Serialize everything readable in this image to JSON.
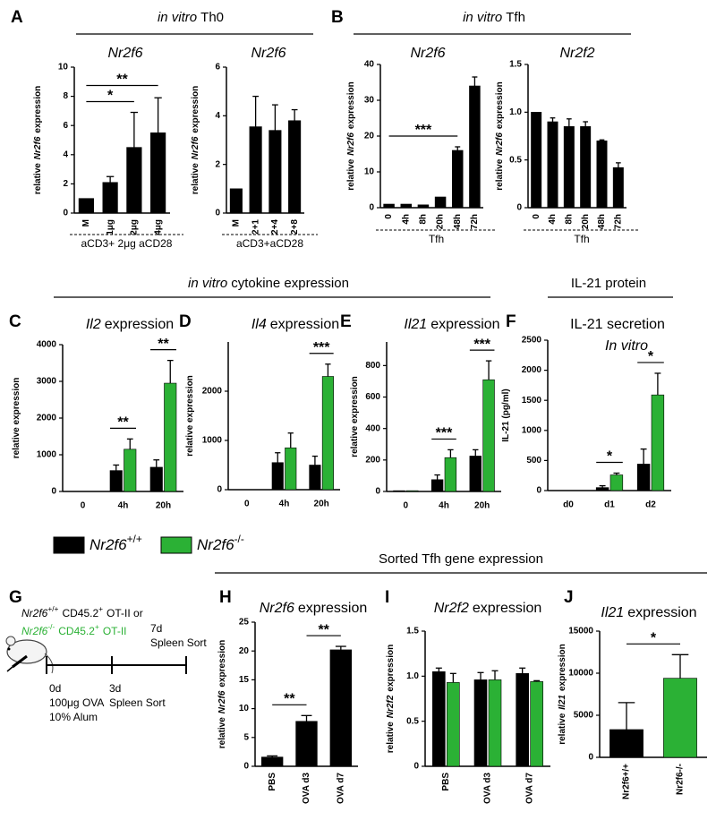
{
  "headers": [
    {
      "parts": [
        {
          "text": "in vitro",
          "italic": true
        },
        {
          "text": "Th0"
        }
      ]
    },
    {
      "parts": [
        {
          "text": "in vitro",
          "italic": true
        },
        {
          "text": "Tfh"
        }
      ]
    },
    {
      "parts": [
        {
          "text": "in vitro",
          "italic": true
        },
        {
          "text": "cytokine expression"
        }
      ]
    },
    {
      "parts": [
        {
          "text": "IL-21 protein"
        }
      ]
    },
    {
      "parts": [
        {
          "text": "Sorted Tfh gene expression"
        }
      ]
    }
  ],
  "panel_labels": [
    "A",
    "B",
    "C",
    "D",
    "E",
    "F",
    "G",
    "H",
    "I",
    "J"
  ],
  "legend": [
    {
      "color": "#000000",
      "label": [
        {
          "text": "Nr2f6",
          "italic": true
        },
        {
          "text": "+/+",
          "sup": true
        }
      ]
    },
    {
      "color": "#2bb135",
      "label": [
        {
          "text": "Nr2f6",
          "italic": true
        },
        {
          "text": "-/-",
          "sup": true
        }
      ]
    }
  ],
  "diagram": {
    "genotypes": [
      {
        "color": "#000000",
        "parts": [
          {
            "text": "Nr2f6",
            "italic": true
          },
          {
            "text": "+/+",
            "sup": true
          },
          {
            "text": "CD45.2"
          },
          {
            "text": "+",
            "sup": true
          },
          {
            "text": "OT-II or"
          }
        ]
      },
      {
        "color": "#2bb135",
        "parts": [
          {
            "text": "Nr2f6",
            "italic": true
          },
          {
            "text": "-/-",
            "sup": true
          },
          {
            "text": "CD45.2"
          },
          {
            "text": "+",
            "sup": true
          },
          {
            "text": "OT-II"
          }
        ]
      }
    ],
    "timepoints": [
      {
        "day": "0d",
        "lines": [
          "100μg OVA",
          "10% Alum"
        ]
      },
      {
        "day": "3d",
        "lines": [
          "Spleen Sort"
        ]
      },
      {
        "day": "7d",
        "lines": [
          "Spleen Sort"
        ]
      }
    ]
  },
  "chart_data": [
    {
      "type": "bar",
      "title": [
        {
          "text": "Nr2f6",
          "italic": true
        }
      ],
      "ylabel": [
        {
          "text": "relative"
        },
        {
          "text": "Nr2f6",
          "italic": true
        },
        {
          "text": "expression"
        }
      ],
      "categories": [
        "M",
        "1μg",
        "2μg",
        "4μg"
      ],
      "xlabel": "aCD3+ 2μg aCD28",
      "series": [
        {
          "color": "#000000",
          "values": [
            1,
            2.1,
            4.5,
            5.5
          ],
          "errors": [
            0,
            0.4,
            2.4,
            2.4
          ]
        }
      ],
      "ylim": [
        0,
        10
      ],
      "yticks": [
        0,
        2,
        4,
        6,
        8,
        10
      ],
      "significance": [
        {
          "label": "*",
          "from": "M",
          "to": "2μg"
        },
        {
          "label": "**",
          "from": "M",
          "to": "4μg"
        }
      ]
    },
    {
      "type": "bar",
      "title": [
        {
          "text": "Nr2f6",
          "italic": true
        }
      ],
      "ylabel": [
        {
          "text": "relative"
        },
        {
          "text": "Nr2f6",
          "italic": true
        },
        {
          "text": "expression"
        }
      ],
      "categories": [
        "M",
        "2+1",
        "2+4",
        "2+8"
      ],
      "xlabel": "aCD3+aCD28",
      "series": [
        {
          "color": "#000000",
          "values": [
            1,
            3.55,
            3.4,
            3.8
          ],
          "errors": [
            0,
            1.25,
            1.05,
            0.45
          ]
        }
      ],
      "ylim": [
        0,
        6
      ],
      "yticks": [
        0,
        2,
        4,
        6
      ],
      "significance": []
    },
    {
      "type": "bar",
      "title": [
        {
          "text": "Nr2f6",
          "italic": true
        }
      ],
      "ylabel": [
        {
          "text": "relative"
        },
        {
          "text": "Nr2f6",
          "italic": true
        },
        {
          "text": "expression"
        }
      ],
      "categories": [
        "0",
        "4h",
        "8h",
        "20h",
        "48h",
        "72h"
      ],
      "xlabel": "Tfh",
      "series": [
        {
          "color": "#000000",
          "values": [
            1,
            1,
            0.8,
            3,
            16,
            34
          ],
          "errors": [
            0,
            0,
            0,
            0,
            1,
            2.5
          ]
        }
      ],
      "ylim": [
        0,
        40
      ],
      "yticks": [
        0,
        10,
        20,
        30,
        40
      ],
      "significance": [
        {
          "label": "***",
          "from": "0",
          "to": "48h"
        }
      ]
    },
    {
      "type": "bar",
      "title": [
        {
          "text": "Nr2f2",
          "italic": true
        }
      ],
      "ylabel": [
        {
          "text": "relative"
        },
        {
          "text": "Nr2f6",
          "italic": true
        },
        {
          "text": "expression"
        }
      ],
      "categories": [
        "0",
        "4h",
        "8h",
        "20h",
        "48h",
        "72h"
      ],
      "xlabel": "Tfh",
      "series": [
        {
          "color": "#000000",
          "values": [
            1.0,
            0.9,
            0.85,
            0.85,
            0.7,
            0.42
          ],
          "errors": [
            0,
            0.04,
            0.08,
            0.05,
            0.01,
            0.05
          ]
        }
      ],
      "ylim": [
        0,
        1.5
      ],
      "yticks": [
        0,
        0.5,
        {
          "value": 1,
          "label": "1.0"
        },
        1.5
      ],
      "significance": []
    },
    {
      "type": "bar",
      "title": [
        {
          "text": "Il2",
          "italic": true
        },
        {
          "text": "expression"
        }
      ],
      "ylabel": [
        {
          "text": "relative expression"
        }
      ],
      "categories": [
        "0",
        "4h",
        "20h"
      ],
      "series": [
        {
          "color": "#000000",
          "values": [
            0,
            570,
            660
          ],
          "errors": [
            0,
            150,
            200
          ]
        },
        {
          "color": "#2bb135",
          "values": [
            0,
            1150,
            2950
          ],
          "errors": [
            0,
            280,
            620
          ]
        }
      ],
      "ylim": [
        0,
        4000
      ],
      "yticks": [
        0,
        1000,
        2000,
        3000,
        4000
      ],
      "significance": [
        {
          "label": "**",
          "from": "4h",
          "to": "4h"
        },
        {
          "label": "**",
          "from": "20h",
          "to": "20h"
        }
      ]
    },
    {
      "type": "bar",
      "title": [
        {
          "text": "Il4",
          "italic": true
        },
        {
          "text": "expression"
        }
      ],
      "ylabel": [
        {
          "text": "relative expression"
        }
      ],
      "categories": [
        "0",
        "4h",
        "20h"
      ],
      "series": [
        {
          "color": "#000000",
          "values": [
            0,
            550,
            500
          ],
          "errors": [
            0,
            200,
            180
          ]
        },
        {
          "color": "#2bb135",
          "values": [
            0,
            850,
            2300
          ],
          "errors": [
            0,
            300,
            250
          ]
        }
      ],
      "ylim": [
        0,
        3000
      ],
      "yticks": [
        0,
        1000,
        2000
      ],
      "significance": [
        {
          "label": "***",
          "from": "20h",
          "to": "20h"
        }
      ]
    },
    {
      "type": "bar",
      "title": [
        {
          "text": "Il21",
          "italic": true
        },
        {
          "text": "expression"
        }
      ],
      "ylabel": [
        {
          "text": "relative expression"
        }
      ],
      "categories": [
        "0",
        "4h",
        "20h"
      ],
      "series": [
        {
          "color": "#000000",
          "values": [
            5,
            75,
            225
          ],
          "errors": [
            0,
            30,
            40
          ]
        },
        {
          "color": "#2bb135",
          "values": [
            5,
            215,
            710
          ],
          "errors": [
            0,
            50,
            120
          ]
        }
      ],
      "ylim": [
        0,
        950
      ],
      "yticks": [
        0,
        200,
        400,
        600,
        800
      ],
      "significance": [
        {
          "label": "***",
          "from": "4h",
          "to": "4h"
        },
        {
          "label": "***",
          "from": "20h",
          "to": "20h"
        }
      ]
    },
    {
      "type": "bar",
      "title": [
        {
          "text": "IL-21 secretion"
        }
      ],
      "subtitle": [
        {
          "text": "In vitro",
          "italic": true
        }
      ],
      "ylabel": [
        {
          "text": "IL-21 (pg/ml)"
        }
      ],
      "categories": [
        "d0",
        "d1",
        "d2"
      ],
      "series": [
        {
          "color": "#000000",
          "values": [
            0,
            50,
            440
          ],
          "errors": [
            0,
            30,
            250
          ]
        },
        {
          "color": "#2bb135",
          "values": [
            0,
            260,
            1590
          ],
          "errors": [
            0,
            30,
            360
          ]
        }
      ],
      "ylim": [
        0,
        2500
      ],
      "yticks": [
        0,
        500,
        1000,
        1500,
        2000,
        2500
      ],
      "significance": [
        {
          "label": "*",
          "from": "d1",
          "to": "d1"
        },
        {
          "label": "*",
          "from": "d2",
          "to": "d2"
        }
      ]
    },
    {
      "type": "bar",
      "title": [
        {
          "text": "Nr2f6",
          "italic": true
        },
        {
          "text": "expression"
        }
      ],
      "ylabel": [
        {
          "text": "relative"
        },
        {
          "text": "Nr2f6",
          "italic": true
        },
        {
          "text": "expression"
        }
      ],
      "categories": [
        "PBS",
        "OVA d3",
        "OVA d7"
      ],
      "series": [
        {
          "color": "#000000",
          "values": [
            1.6,
            7.8,
            20.2
          ],
          "errors": [
            0.2,
            1.0,
            0.6
          ]
        }
      ],
      "ylim": [
        0,
        25
      ],
      "yticks": [
        0,
        5,
        10,
        15,
        20,
        25
      ],
      "significance": [
        {
          "label": "**",
          "from": "PBS",
          "to": "OVA d3"
        },
        {
          "label": "**",
          "from": "OVA d3",
          "to": "OVA d7"
        }
      ]
    },
    {
      "type": "bar",
      "title": [
        {
          "text": "Nr2f2",
          "italic": true
        },
        {
          "text": "expression"
        }
      ],
      "ylabel": [
        {
          "text": "relative"
        },
        {
          "text": "Nr2f2",
          "italic": true
        },
        {
          "text": "expression"
        }
      ],
      "categories": [
        "PBS",
        "OVA d3",
        "OVA d7"
      ],
      "series": [
        {
          "color": "#000000",
          "values": [
            1.05,
            0.96,
            1.03
          ],
          "errors": [
            0.04,
            0.08,
            0.06
          ]
        },
        {
          "color": "#2bb135",
          "values": [
            0.93,
            0.96,
            0.94
          ],
          "errors": [
            0.1,
            0.1,
            0.01
          ]
        }
      ],
      "ylim": [
        0,
        1.5
      ],
      "yticks": [
        0,
        0.5,
        {
          "value": 1,
          "label": "1.0"
        },
        1.5
      ],
      "significance": []
    },
    {
      "type": "bar",
      "title": [
        {
          "text": "Il21",
          "italic": true
        },
        {
          "text": "expression"
        }
      ],
      "ylabel": [
        {
          "text": "relative"
        },
        {
          "text": "Il21",
          "italic": true
        },
        {
          "text": "expression"
        }
      ],
      "categories": [
        "Nr2f6+/+",
        "Nr2f6-/-"
      ],
      "series": [
        {
          "colors": [
            "#000000",
            "#2bb135"
          ],
          "values": [
            3300,
            9400
          ],
          "errors": [
            3200,
            2800
          ]
        }
      ],
      "ylim": [
        0,
        15000
      ],
      "yticks": [
        0,
        5000,
        10000,
        15000
      ],
      "significance": [
        {
          "label": "*",
          "from": "Nr2f6+/+",
          "to": "Nr2f6-/-"
        }
      ]
    }
  ]
}
